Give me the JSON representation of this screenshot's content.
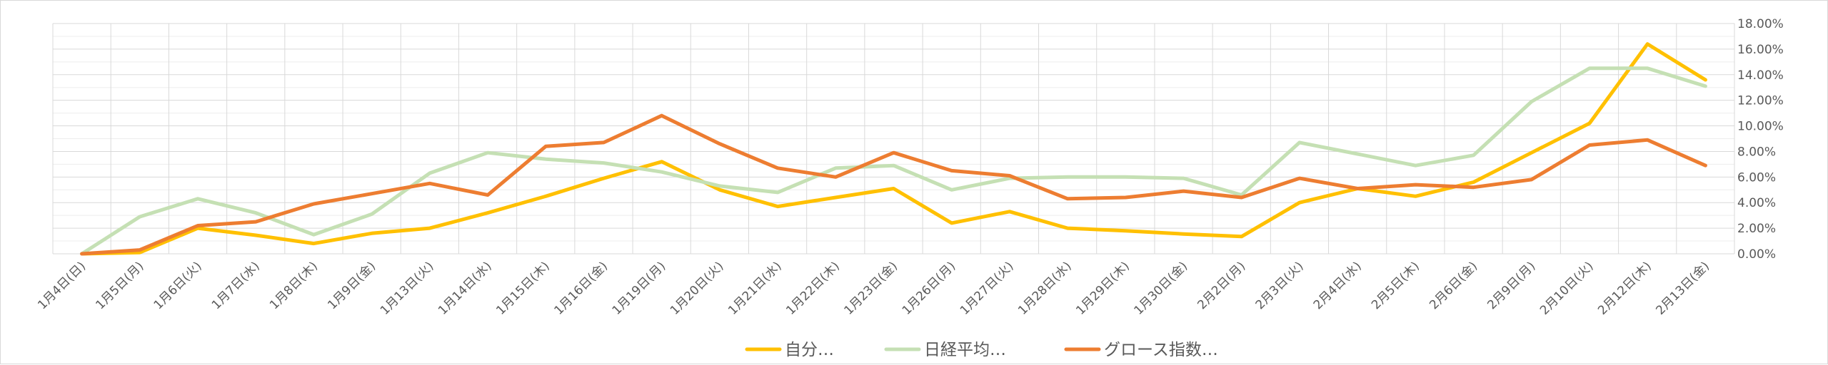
{
  "chart_data": {
    "type": "line",
    "categories": [
      "1月4日(日)",
      "1月5日(月)",
      "1月6日(火)",
      "1月7日(水)",
      "1月8日(木)",
      "1月9日(金)",
      "1月13日(火)",
      "1月14日(水)",
      "1月15日(木)",
      "1月16日(金)",
      "1月19日(月)",
      "1月20日(火)",
      "1月21日(水)",
      "1月22日(木)",
      "1月23日(金)",
      "1月26日(月)",
      "1月27日(火)",
      "1月28日(水)",
      "1月29日(木)",
      "1月30日(金)",
      "2月2日(月)",
      "2月3日(火)",
      "2月4日(水)",
      "2月5日(木)",
      "2月6日(金)",
      "2月9日(月)",
      "2月10日(火)",
      "2月12日(木)",
      "2月13日(金)"
    ],
    "series": [
      {
        "name": "自分…",
        "color": "#FFC000",
        "values": [
          0.0,
          0.1,
          2.0,
          1.45,
          0.8,
          1.6,
          2.0,
          3.2,
          4.5,
          5.9,
          7.2,
          5.0,
          3.7,
          4.4,
          5.1,
          2.4,
          3.3,
          2.0,
          1.8,
          1.55,
          1.35,
          4.0,
          5.1,
          4.5,
          5.6,
          7.9,
          10.2,
          16.4,
          13.6
        ]
      },
      {
        "name": "日経平均…",
        "color": "#C5E0B4",
        "values": [
          0.0,
          2.9,
          4.3,
          3.2,
          1.5,
          3.1,
          6.3,
          7.9,
          7.4,
          7.1,
          6.4,
          5.3,
          4.8,
          6.7,
          6.9,
          5.0,
          5.9,
          6.0,
          6.0,
          5.9,
          4.6,
          8.7,
          7.8,
          6.9,
          7.7,
          11.9,
          14.5,
          14.5,
          13.1
        ]
      },
      {
        "name": "グロース指数…",
        "color": "#ED7D31",
        "values": [
          0.0,
          0.3,
          2.2,
          2.5,
          3.9,
          4.7,
          5.5,
          4.6,
          8.4,
          8.7,
          10.8,
          8.6,
          6.7,
          6.0,
          7.9,
          6.5,
          6.1,
          4.3,
          4.4,
          4.9,
          4.4,
          5.9,
          5.1,
          5.4,
          5.2,
          5.8,
          8.5,
          8.9,
          6.9
        ]
      }
    ],
    "ylim": [
      0,
      18
    ],
    "yticks": [
      0,
      2,
      4,
      6,
      8,
      10,
      12,
      14,
      16,
      18
    ],
    "ytick_labels": [
      "0.00%",
      "2.00%",
      "4.00%",
      "6.00%",
      "8.00%",
      "10.00%",
      "12.00%",
      "14.00%",
      "16.00%",
      "18.00%"
    ],
    "y_axis_side": "right",
    "grid": true,
    "legend_position": "bottom",
    "colors": {
      "grid": "#D9D9D9",
      "text": "#595959"
    }
  }
}
